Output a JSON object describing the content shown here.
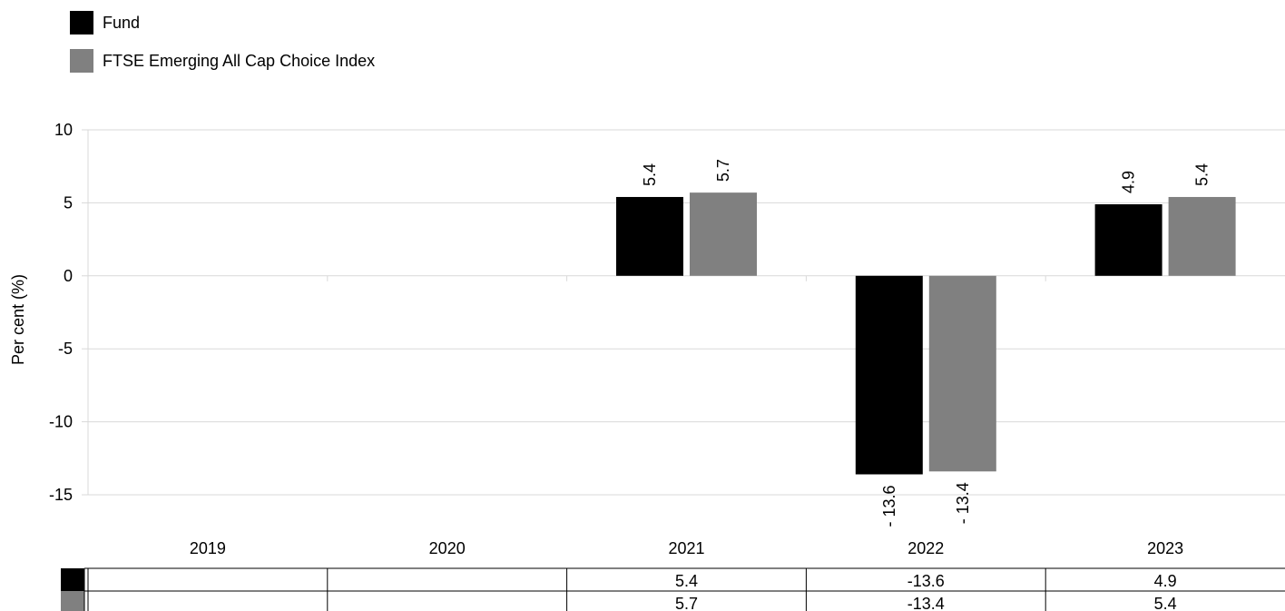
{
  "legend": {
    "items": [
      {
        "label": "Fund",
        "color": "#000000"
      },
      {
        "label": "FTSE Emerging All Cap Choice Index",
        "color": "#808080"
      }
    ]
  },
  "chart_data": {
    "type": "bar",
    "title": "",
    "xlabel": "",
    "ylabel": "Per cent (%)",
    "ylim": [
      -15,
      10
    ],
    "yticks": [
      10,
      5,
      0,
      -5,
      -10,
      -15
    ],
    "ytick_labels": [
      "10",
      "5",
      "0",
      "-5",
      "-10",
      "-15"
    ],
    "grid": true,
    "legend_position": "top-left",
    "categories": [
      "2019",
      "2020",
      "2021",
      "2022",
      "2023"
    ],
    "series": [
      {
        "name": "Fund",
        "color": "#000000",
        "values": [
          null,
          null,
          5.4,
          -13.6,
          4.9
        ],
        "data_labels": [
          "",
          "",
          "5.4",
          "- 13.6",
          "4.9"
        ],
        "table_values": [
          "",
          "",
          "5.4",
          "-13.6",
          "4.9"
        ]
      },
      {
        "name": "FTSE Emerging All Cap Choice Index",
        "color": "#808080",
        "values": [
          null,
          null,
          5.7,
          -13.4,
          5.4
        ],
        "data_labels": [
          "",
          "",
          "5.7",
          "- 13.4",
          "5.4"
        ],
        "table_values": [
          "",
          "",
          "5.7",
          "-13.4",
          "5.4"
        ]
      }
    ]
  }
}
